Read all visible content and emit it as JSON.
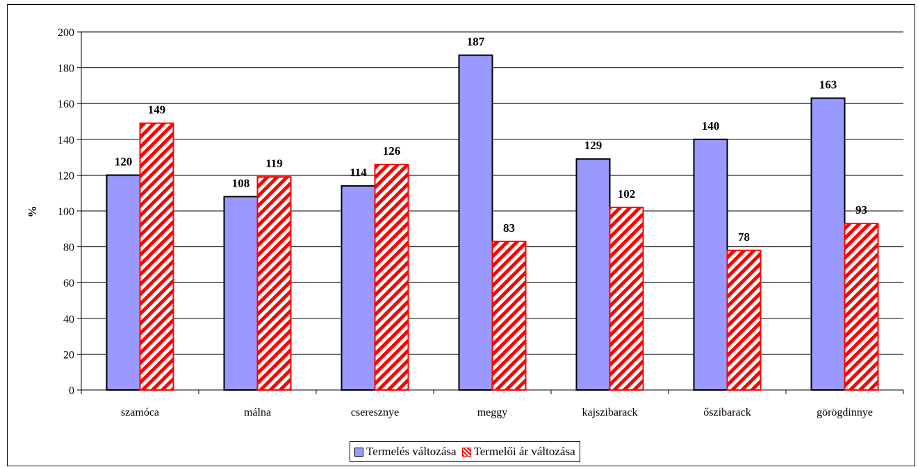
{
  "chart_data": {
    "type": "bar",
    "categories": [
      "szamóca",
      "málna",
      "cseresznye",
      "meggy",
      "kajszibarack",
      "őszibarack",
      "görögdinnye"
    ],
    "series": [
      {
        "name": "Termelés változása",
        "values": [
          120,
          108,
          114,
          187,
          129,
          140,
          163
        ],
        "color": "#9999ff",
        "pattern": "solid"
      },
      {
        "name": "Termelői ár változása",
        "values": [
          149,
          119,
          126,
          83,
          102,
          78,
          93
        ],
        "color": "#ff0000",
        "pattern": "diagonal-stripes"
      }
    ],
    "data_labels": {
      "series_0": [
        "120",
        "108",
        "114",
        "187",
        "129",
        "140",
        "163"
      ],
      "series_1": [
        "149",
        "119",
        "126",
        "83",
        "102",
        "78",
        "93"
      ]
    },
    "ylabel": "%",
    "xlabel": "",
    "ylim": [
      0,
      200
    ],
    "yticks": [
      "0",
      "20",
      "40",
      "60",
      "80",
      "100",
      "120",
      "140",
      "160",
      "180",
      "200"
    ],
    "grid": true,
    "legend_position": "bottom-center"
  }
}
